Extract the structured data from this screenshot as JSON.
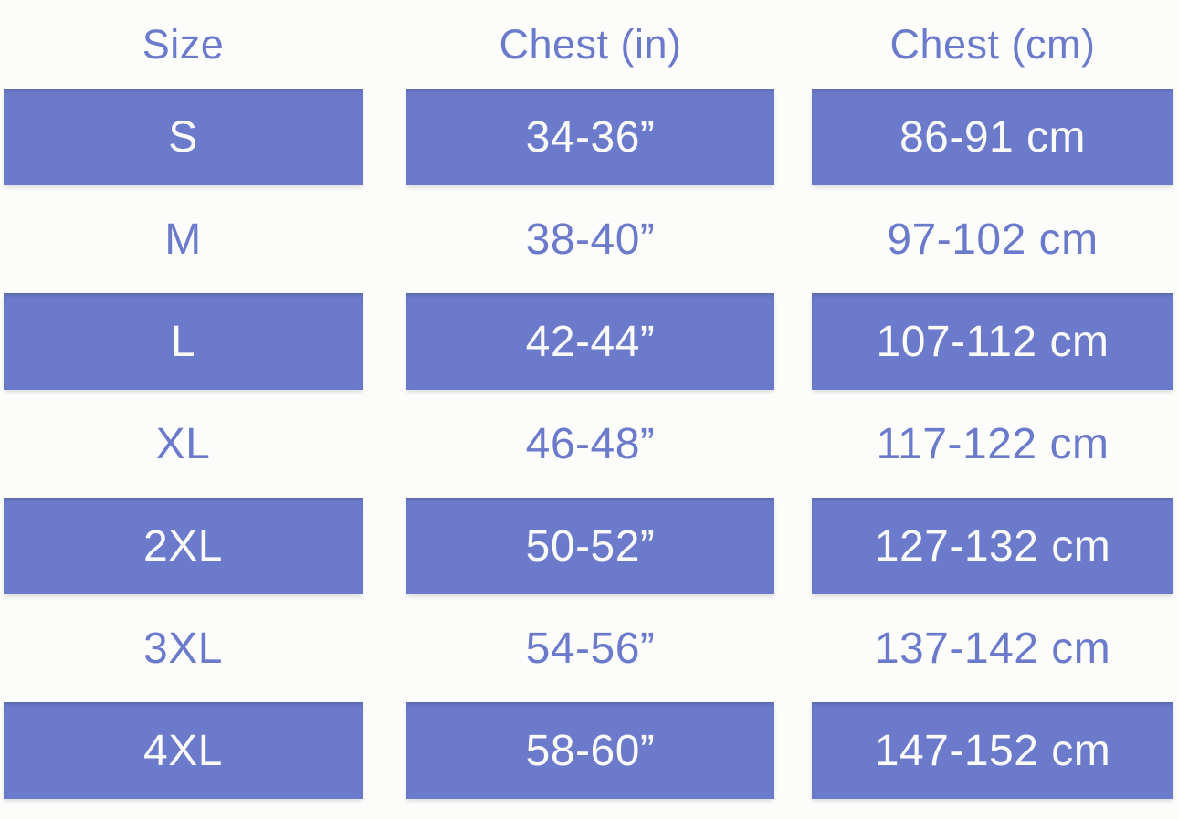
{
  "chart_data": {
    "type": "table",
    "columns": [
      "Size",
      "Chest (in)",
      "Chest (cm)"
    ],
    "rows": [
      {
        "size": "S",
        "chest_in": "34-36”",
        "chest_cm": "86-91 cm",
        "highlighted": true
      },
      {
        "size": "M",
        "chest_in": "38-40”",
        "chest_cm": "97-102 cm",
        "highlighted": false
      },
      {
        "size": "L",
        "chest_in": "42-44”",
        "chest_cm": "107-112 cm",
        "highlighted": true
      },
      {
        "size": "XL",
        "chest_in": "46-48”",
        "chest_cm": "117-122 cm",
        "highlighted": false
      },
      {
        "size": "2XL",
        "chest_in": "50-52”",
        "chest_cm": "127-132 cm",
        "highlighted": true
      },
      {
        "size": "3XL",
        "chest_in": "54-56”",
        "chest_cm": "137-142 cm",
        "highlighted": false
      },
      {
        "size": "4XL",
        "chest_in": "58-60”",
        "chest_cm": "147-152 cm",
        "highlighted": true
      }
    ],
    "layout": {
      "legend": "none",
      "grid": "off",
      "highlight_style": "alternating filled bars"
    }
  },
  "colors": {
    "accent": "#6B7ACB",
    "bar_text": "#FAFAF9",
    "background": "#FCFCFB"
  }
}
